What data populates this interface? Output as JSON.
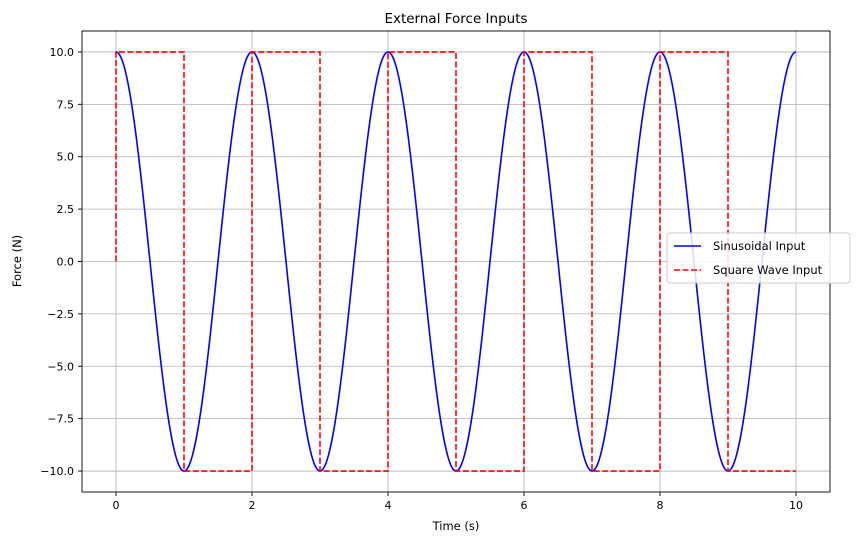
{
  "chart_data": {
    "type": "line",
    "title": "External Force Inputs",
    "xlabel": "Time (s)",
    "ylabel": "Force (N)",
    "xlim": [
      -0.5,
      10.5
    ],
    "ylim": [
      -11,
      11
    ],
    "xticks": [
      0,
      2,
      4,
      6,
      8,
      10
    ],
    "xtick_labels": [
      "0",
      "2",
      "4",
      "6",
      "8",
      "10"
    ],
    "yticks": [
      -10,
      -7.5,
      -5,
      -2.5,
      0,
      2.5,
      5,
      7.5,
      10
    ],
    "ytick_labels": [
      "−10.0",
      "−7.5",
      "−5.0",
      "−2.5",
      "0.0",
      "2.5",
      "5.0",
      "7.5",
      "10.0"
    ],
    "grid": true,
    "legend": {
      "position": "center-right"
    },
    "series": [
      {
        "name": "Sinusoidal Input",
        "color": "#0000ff",
        "style": "solid",
        "x": [
          0,
          0.5,
          1,
          1.5,
          2,
          2.5,
          3,
          3.5,
          4,
          4.5,
          5,
          5.5,
          6,
          6.5,
          7,
          7.5,
          8,
          8.5,
          9,
          9.5,
          10
        ],
        "y": [
          10,
          0,
          -10,
          0,
          10,
          0,
          -10,
          0,
          10,
          0,
          -10,
          0,
          10,
          0,
          -10,
          0,
          10,
          0,
          -10,
          0,
          10
        ]
      },
      {
        "name": "Square Wave Input",
        "color": "#ff0000",
        "style": "dashed",
        "x": [
          0,
          0,
          1,
          1,
          2,
          2,
          3,
          3,
          4,
          4,
          5,
          5,
          6,
          6,
          7,
          7,
          8,
          8,
          9,
          9,
          10
        ],
        "y": [
          0,
          10,
          10,
          -10,
          -10,
          10,
          10,
          -10,
          -10,
          10,
          10,
          -10,
          -10,
          10,
          10,
          -10,
          -10,
          10,
          10,
          -10,
          -10
        ]
      }
    ]
  }
}
